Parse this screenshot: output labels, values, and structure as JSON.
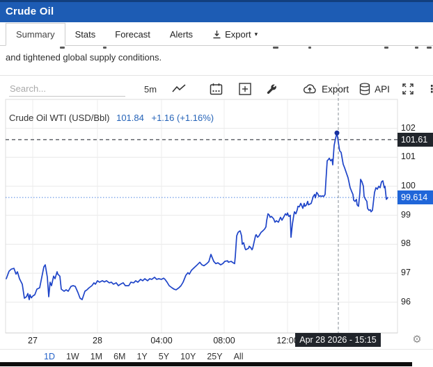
{
  "window": {
    "title": "Crude Oil"
  },
  "tabs": [
    {
      "label": "Summary",
      "active": true
    },
    {
      "label": "Stats",
      "active": false
    },
    {
      "label": "Forecast",
      "active": false
    },
    {
      "label": "Alerts",
      "active": false
    },
    {
      "label": "Export",
      "active": false,
      "icon": "download-icon",
      "has_caret": true
    }
  ],
  "article": {
    "visible_text": "and tightened global supply conditions."
  },
  "toolbar": {
    "search_placeholder": "Search...",
    "interval_label": "5m",
    "export_label": "Export",
    "api_label": "API",
    "kebab_glyph": "⋮"
  },
  "legend": {
    "symbol": "Crude Oil WTI (USD/Bbl)",
    "price": "101.84",
    "change": "+1.16 (+1.16%)"
  },
  "chart_data": {
    "type": "line",
    "title": "Crude Oil WTI (USD/Bbl)",
    "interval": "5m",
    "legend_position": "top-left",
    "grid": true,
    "quote": {
      "last": 101.84,
      "change": 1.16,
      "change_pct": 1.16
    },
    "y_axis": {
      "ticks": [
        102,
        101,
        100,
        99,
        98,
        97,
        96
      ],
      "range_approx": [
        95.3,
        103.0
      ]
    },
    "x_axis": {
      "note": "x values are pixels from plot left edge; plot width 563px; ~22.4 px per hour",
      "ticks": [
        {
          "label": "27",
          "x": 39
        },
        {
          "label": "28",
          "x": 132
        },
        {
          "label": "04:00",
          "x": 224
        },
        {
          "label": "08:00",
          "x": 314
        },
        {
          "label": "12:00",
          "x": 405
        }
      ],
      "minor_grid_x": [
        450,
        493
      ]
    },
    "crosshair": {
      "x": 478,
      "time_label": "Apr 28 2026 - 15:15",
      "price_label": "101.61",
      "price": 101.61
    },
    "last_price": {
      "label": "99.614",
      "price": 99.614
    },
    "marker": {
      "x": 476,
      "price": 101.84
    },
    "series": [
      {
        "name": "Crude Oil WTI",
        "color": "#1e44c8",
        "points": [
          [
            1,
            96.81
          ],
          [
            5,
            97.07
          ],
          [
            8,
            97.14
          ],
          [
            12,
            97.17
          ],
          [
            15,
            96.97
          ],
          [
            17,
            97.05
          ],
          [
            20,
            96.81
          ],
          [
            24,
            96.62
          ],
          [
            27,
            96.14
          ],
          [
            30,
            96.19
          ],
          [
            32,
            96.3
          ],
          [
            34,
            96.09
          ],
          [
            35,
            96.26
          ],
          [
            37,
            96.15
          ],
          [
            39,
            96.21
          ],
          [
            42,
            96.26
          ],
          [
            45,
            96.45
          ],
          [
            49,
            96.5
          ],
          [
            52,
            96.86
          ],
          [
            55,
            97.22
          ],
          [
            57,
            97.29
          ],
          [
            60,
            96.86
          ],
          [
            62,
            96.19
          ],
          [
            64,
            96.69
          ],
          [
            66,
            96.57
          ],
          [
            69,
            96.9
          ],
          [
            71,
            96.81
          ],
          [
            74,
            97.05
          ],
          [
            75,
            96.97
          ],
          [
            78,
            96.9
          ],
          [
            80,
            96.45
          ],
          [
            84,
            96.38
          ],
          [
            87,
            96.43
          ],
          [
            90,
            96.38
          ],
          [
            94,
            96.55
          ],
          [
            97,
            96.57
          ],
          [
            100,
            96.55
          ],
          [
            104,
            96.33
          ],
          [
            107,
            96.14
          ],
          [
            110,
            96.09
          ],
          [
            114,
            96.38
          ],
          [
            117,
            96.43
          ],
          [
            120,
            96.5
          ],
          [
            124,
            96.57
          ],
          [
            127,
            96.67
          ],
          [
            129,
            96.62
          ],
          [
            132,
            96.74
          ],
          [
            135,
            96.69
          ],
          [
            139,
            96.74
          ],
          [
            142,
            96.7
          ],
          [
            145,
            96.74
          ],
          [
            149,
            96.67
          ],
          [
            152,
            96.69
          ],
          [
            155,
            96.62
          ],
          [
            159,
            96.67
          ],
          [
            162,
            96.57
          ],
          [
            165,
            96.62
          ],
          [
            169,
            96.67
          ],
          [
            172,
            96.57
          ],
          [
            177,
            96.57
          ],
          [
            180,
            96.69
          ],
          [
            184,
            96.67
          ],
          [
            187,
            96.74
          ],
          [
            190,
            96.69
          ],
          [
            194,
            96.79
          ],
          [
            197,
            96.74
          ],
          [
            200,
            96.81
          ],
          [
            204,
            96.74
          ],
          [
            207,
            96.81
          ],
          [
            210,
            96.79
          ],
          [
            214,
            96.86
          ],
          [
            217,
            96.79
          ],
          [
            220,
            96.81
          ],
          [
            224,
            96.79
          ],
          [
            227,
            96.83
          ],
          [
            229,
            96.79
          ],
          [
            232,
            96.69
          ],
          [
            235,
            96.57
          ],
          [
            239,
            96.5
          ],
          [
            242,
            96.45
          ],
          [
            245,
            96.43
          ],
          [
            249,
            96.5
          ],
          [
            252,
            96.57
          ],
          [
            255,
            96.69
          ],
          [
            259,
            96.93
          ],
          [
            262,
            97.02
          ],
          [
            264,
            96.97
          ],
          [
            267,
            97.1
          ],
          [
            270,
            97.17
          ],
          [
            274,
            97.26
          ],
          [
            277,
            97.33
          ],
          [
            279,
            97.38
          ],
          [
            282,
            97.29
          ],
          [
            285,
            97.26
          ],
          [
            289,
            97.33
          ],
          [
            292,
            97.4
          ],
          [
            295,
            97.65
          ],
          [
            299,
            97.41
          ],
          [
            302,
            97.33
          ],
          [
            305,
            97.36
          ],
          [
            309,
            97.29
          ],
          [
            312,
            97.33
          ],
          [
            315,
            97.41
          ],
          [
            319,
            97.43
          ],
          [
            320,
            97.38
          ],
          [
            324,
            97.41
          ],
          [
            327,
            97.36
          ],
          [
            329,
            97.33
          ],
          [
            330,
            97.58
          ],
          [
            332,
            98.29
          ],
          [
            334,
            98.41
          ],
          [
            336,
            98.45
          ],
          [
            337,
            98.46
          ],
          [
            339,
            98.29
          ],
          [
            340,
            98.0
          ],
          [
            342,
            98.05
          ],
          [
            344,
            97.86
          ],
          [
            345,
            97.81
          ],
          [
            349,
            97.86
          ],
          [
            350,
            97.93
          ],
          [
            352,
            97.89
          ],
          [
            354,
            97.81
          ],
          [
            355,
            97.86
          ],
          [
            359,
            98.29
          ],
          [
            360,
            98.33
          ],
          [
            362,
            98.24
          ],
          [
            364,
            98.29
          ],
          [
            367,
            98.41
          ],
          [
            369,
            98.45
          ],
          [
            372,
            98.52
          ],
          [
            374,
            98.6
          ],
          [
            375,
            98.81
          ],
          [
            377,
            99.05
          ],
          [
            379,
            99.0
          ],
          [
            380,
            98.93
          ],
          [
            382,
            98.96
          ],
          [
            385,
            98.88
          ],
          [
            387,
            98.76
          ],
          [
            389,
            98.81
          ],
          [
            392,
            98.76
          ],
          [
            394,
            98.88
          ],
          [
            395,
            98.93
          ],
          [
            397,
            98.83
          ],
          [
            400,
            98.96
          ],
          [
            402,
            99.05
          ],
          [
            404,
            99.0
          ],
          [
            405,
            99.08
          ],
          [
            407,
            98.96
          ],
          [
            409,
            99.0
          ],
          [
            410,
            98.24
          ],
          [
            412,
            98.69
          ],
          [
            414,
            99.0
          ],
          [
            415,
            99.12
          ],
          [
            417,
            99.05
          ],
          [
            419,
            99.19
          ],
          [
            420,
            99.31
          ],
          [
            422,
            99.29
          ],
          [
            424,
            99.41
          ],
          [
            425,
            99.36
          ],
          [
            427,
            99.24
          ],
          [
            429,
            99.41
          ],
          [
            430,
            99.31
          ],
          [
            432,
            99.35
          ],
          [
            434,
            99.48
          ],
          [
            435,
            99.36
          ],
          [
            439,
            99.41
          ],
          [
            442,
            99.65
          ],
          [
            444,
            99.72
          ],
          [
            445,
            99.6
          ],
          [
            447,
            99.79
          ],
          [
            449,
            99.72
          ],
          [
            450,
            99.65
          ],
          [
            452,
            99.67
          ],
          [
            454,
            99.65
          ],
          [
            455,
            99.67
          ],
          [
            457,
            99.65
          ],
          [
            459,
            99.72
          ],
          [
            460,
            100.12
          ],
          [
            462,
            100.88
          ],
          [
            464,
            100.93
          ],
          [
            465,
            100.97
          ],
          [
            467,
            100.88
          ],
          [
            469,
            100.93
          ],
          [
            470,
            100.74
          ],
          [
            472,
            101.41
          ],
          [
            474,
            101.65
          ],
          [
            476,
            101.84
          ],
          [
            479,
            101.36
          ],
          [
            480,
            101.22
          ],
          [
            482,
            101.17
          ],
          [
            485,
            100.76
          ],
          [
            487,
            100.64
          ],
          [
            489,
            100.5
          ],
          [
            492,
            100.29
          ],
          [
            495,
            99.95
          ],
          [
            497,
            99.83
          ],
          [
            499,
            99.72
          ],
          [
            500,
            99.52
          ],
          [
            502,
            99.48
          ],
          [
            504,
            99.55
          ],
          [
            505,
            99.36
          ],
          [
            507,
            99.31
          ],
          [
            509,
            99.79
          ],
          [
            510,
            100.24
          ],
          [
            512,
            100.15
          ],
          [
            514,
            100.0
          ],
          [
            515,
            99.65
          ],
          [
            517,
            99.55
          ],
          [
            519,
            99.48
          ],
          [
            520,
            99.24
          ],
          [
            522,
            99.17
          ],
          [
            524,
            99.19
          ],
          [
            525,
            99.12
          ],
          [
            527,
            99.17
          ],
          [
            530,
            99.79
          ],
          [
            532,
            99.95
          ],
          [
            534,
            99.9
          ],
          [
            536,
            100.0
          ],
          [
            538,
            99.95
          ],
          [
            540,
            100.15
          ],
          [
            542,
            100.19
          ],
          [
            544,
            99.95
          ],
          [
            545,
            100.0
          ],
          [
            547,
            99.55
          ],
          [
            549,
            99.61
          ]
        ]
      }
    ]
  },
  "range_selector": [
    {
      "label": "1D",
      "active": true
    },
    {
      "label": "1W",
      "active": false
    },
    {
      "label": "1M",
      "active": false
    },
    {
      "label": "6M",
      "active": false
    },
    {
      "label": "1Y",
      "active": false
    },
    {
      "label": "5Y",
      "active": false
    },
    {
      "label": "10Y",
      "active": false
    },
    {
      "label": "25Y",
      "active": false
    },
    {
      "label": "All",
      "active": false
    }
  ],
  "misc": {
    "gear_glyph": "⚙"
  },
  "colors": {
    "header_bg": "#1d5cb4",
    "accent_blue": "#2563b8",
    "line": "#1e44c8",
    "last_price_box": "#2066d9",
    "label_box_dark": "#21252b"
  }
}
